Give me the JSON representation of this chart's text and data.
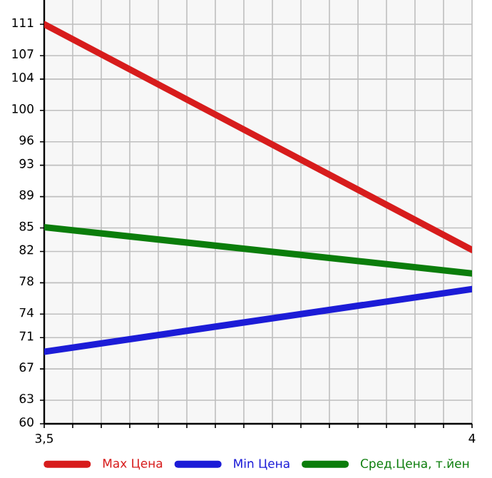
{
  "chart_data": {
    "type": "line",
    "x": [
      3.5,
      4
    ],
    "series": [
      {
        "name": "Max Цена",
        "color": "#d71c1c",
        "values": [
          111.0,
          82.2
        ]
      },
      {
        "name": "Min Цена",
        "color": "#1c1cd7",
        "values": [
          69.2,
          77.2
        ]
      },
      {
        "name": "Сред.Цена, т.йен",
        "color": "#0b7d0b",
        "values": [
          85.1,
          79.2
        ]
      }
    ],
    "xlim": [
      3.5,
      4
    ],
    "xticks": [
      {
        "value": 3.5,
        "label": "3,5"
      },
      {
        "value": 3.5333,
        "label": null
      },
      {
        "value": 3.5667,
        "label": null
      },
      {
        "value": 3.6,
        "label": null
      },
      {
        "value": 3.6333,
        "label": null
      },
      {
        "value": 3.6667,
        "label": null
      },
      {
        "value": 3.7,
        "label": null
      },
      {
        "value": 3.7333,
        "label": null
      },
      {
        "value": 3.7667,
        "label": null
      },
      {
        "value": 3.8,
        "label": null
      },
      {
        "value": 3.8333,
        "label": null
      },
      {
        "value": 3.8667,
        "label": null
      },
      {
        "value": 3.9,
        "label": null
      },
      {
        "value": 3.9333,
        "label": null
      },
      {
        "value": 3.9667,
        "label": null
      },
      4
    ],
    "ylim": [
      60,
      114.1
    ],
    "yticks": [
      60,
      63,
      67,
      71,
      74,
      78,
      82,
      85,
      89,
      93,
      96,
      100,
      104,
      107,
      111
    ],
    "grid": true,
    "legend": "bottom",
    "marker": "none",
    "line_style": "solid"
  }
}
